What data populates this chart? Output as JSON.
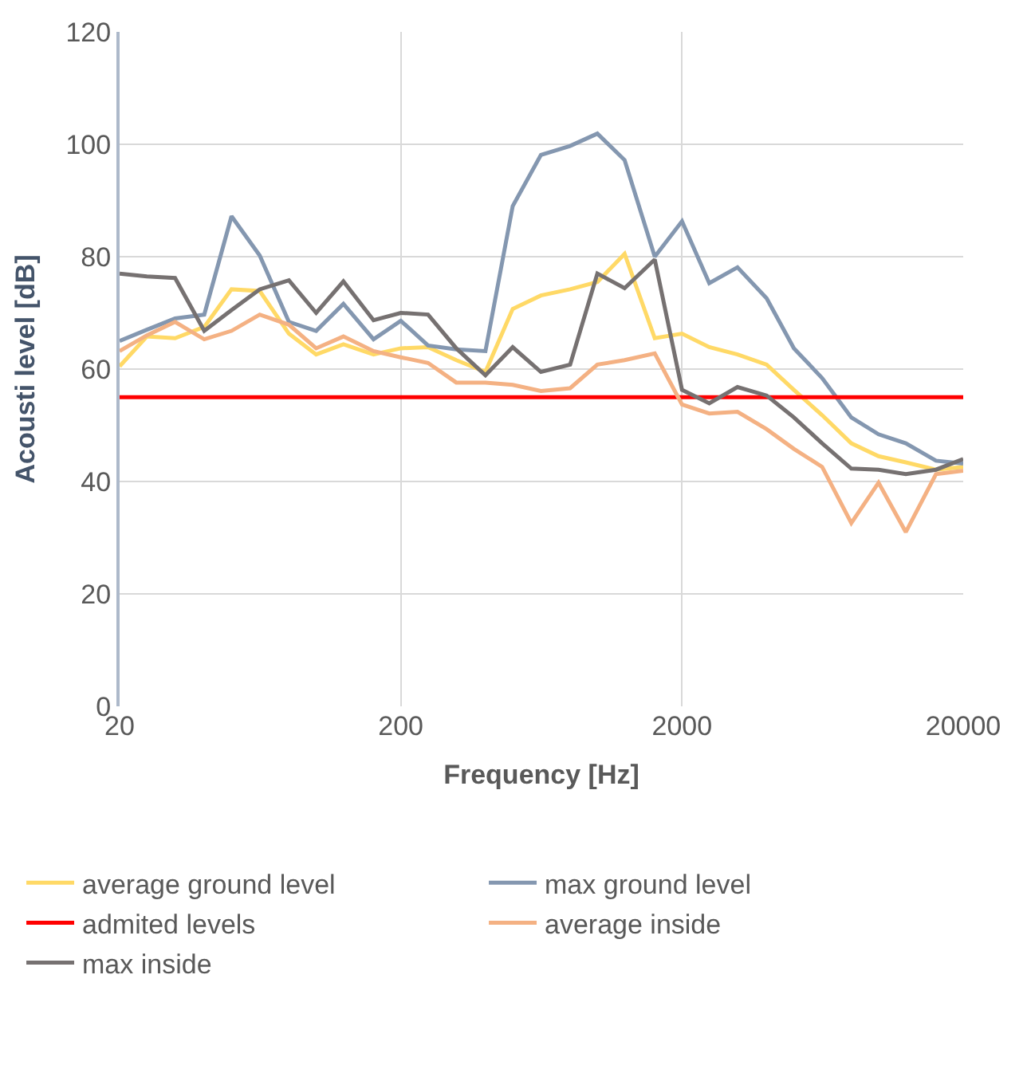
{
  "chart_data": {
    "type": "line",
    "xlabel": "Frequency [Hz]",
    "ylabel": "Acousti level [dB]",
    "x": [
      20,
      25,
      31.5,
      40,
      50,
      63,
      80,
      100,
      125,
      160,
      200,
      250,
      315,
      400,
      500,
      630,
      800,
      1000,
      1250,
      1600,
      2000,
      2500,
      3150,
      4000,
      5000,
      6300,
      8000,
      10000,
      12500,
      16000,
      20000
    ],
    "log": "x",
    "xlim": [
      20,
      20000
    ],
    "xticks": [
      20,
      200,
      2000,
      20000
    ],
    "ylim": [
      0,
      120
    ],
    "yticks": [
      0,
      20,
      40,
      60,
      80,
      100,
      120
    ],
    "grid": true,
    "legend": "bottom",
    "marker": "none",
    "line_style": "solid",
    "series": [
      {
        "name": "average ground level",
        "color": "#ffd966",
        "values": [
          60.5,
          65.8,
          65.5,
          67.5,
          74.2,
          73.9,
          66.3,
          62.6,
          64.4,
          62.6,
          63.7,
          63.9,
          61.6,
          59.5,
          70.7,
          73.1,
          74.2,
          75.5,
          80.5,
          65.5,
          66.3,
          63.9,
          62.6,
          60.8,
          56.3,
          51.8,
          46.8,
          44.5,
          43.4,
          42.1,
          42.6
        ]
      },
      {
        "name": "max ground level",
        "color": "#8497b0",
        "values": [
          65,
          67,
          69,
          69.7,
          87.2,
          80.2,
          68.4,
          66.8,
          71.6,
          65.3,
          68.6,
          64.2,
          63.5,
          63.2,
          89,
          98.1,
          99.7,
          101.9,
          97.2,
          80,
          86.3,
          75.3,
          78.1,
          72.6,
          63.7,
          58.4,
          51.4,
          48.4,
          46.8,
          43.7,
          43.2
        ]
      },
      {
        "name": "admited levels",
        "color": "#ff0000",
        "values": [
          55,
          55,
          55,
          55,
          55,
          55,
          55,
          55,
          55,
          55,
          55,
          55,
          55,
          55,
          55,
          55,
          55,
          55,
          55,
          55,
          55,
          55,
          55,
          55,
          55,
          55,
          55,
          55,
          55,
          55,
          55
        ]
      },
      {
        "name": "average inside",
        "color": "#f4b183",
        "values": [
          63.2,
          66,
          68.4,
          65.3,
          66.8,
          69.7,
          67.9,
          63.7,
          65.8,
          63.2,
          62.1,
          61.1,
          57.6,
          57.6,
          57.2,
          56.1,
          56.6,
          60.8,
          61.6,
          62.8,
          53.7,
          52.1,
          52.4,
          49.3,
          45.8,
          42.6,
          32.6,
          39.8,
          31,
          41.3,
          41.9
        ]
      },
      {
        "name": "max inside",
        "color": "#767171",
        "values": [
          77,
          76.5,
          76.2,
          66.8,
          70.5,
          74.2,
          75.8,
          70,
          75.6,
          68.7,
          70,
          69.7,
          63.7,
          58.9,
          63.9,
          59.5,
          60.8,
          77,
          74.4,
          79.5,
          56.3,
          53.9,
          56.8,
          55.3,
          51.4,
          46.8,
          42.3,
          42.1,
          41.3,
          42.1,
          44
        ]
      }
    ]
  }
}
